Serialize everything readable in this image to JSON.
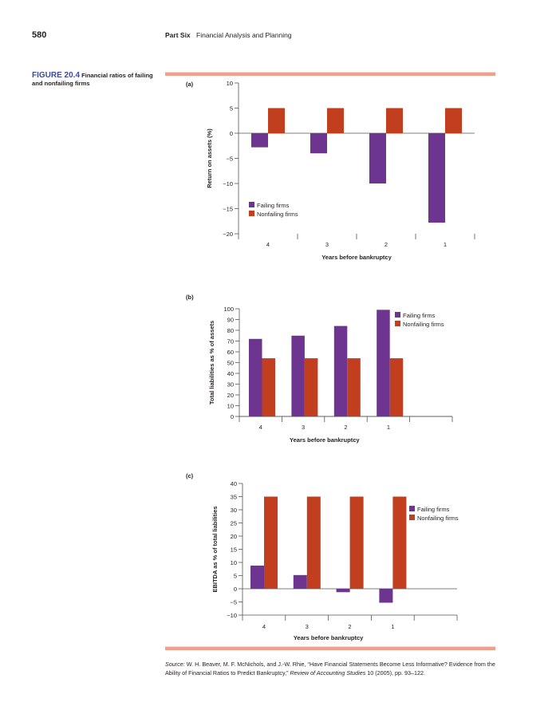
{
  "header": {
    "page_number": "580",
    "part": "Part Six",
    "section": "Financial Analysis and Planning"
  },
  "figure": {
    "number": "FIGURE 20.4",
    "title": "Financial ratios of failing and nonfailing firms"
  },
  "colors": {
    "failing": "#6e3590",
    "nonfailing": "#c13e1f",
    "axis": "#555555",
    "rule": "#f0a08a"
  },
  "chart_data": [
    {
      "panel": "(a)",
      "type": "bar",
      "title": "",
      "xlabel": "Years before bankruptcy",
      "ylabel": "Return on assets (%)",
      "categories": [
        "4",
        "3",
        "2",
        "1"
      ],
      "ylim": [
        -20,
        10
      ],
      "yticks": [
        10,
        5,
        0,
        -5,
        -10,
        -15,
        -20
      ],
      "ytick_labels": [
        "10",
        "5",
        "0",
        "−5",
        "−10",
        "−15",
        "−20"
      ],
      "series": [
        {
          "name": "Failing firms",
          "values": [
            -2.8,
            -4.0,
            -10.0,
            -17.8
          ]
        },
        {
          "name": "Nonfailing firms",
          "values": [
            5,
            5,
            5,
            5
          ]
        }
      ],
      "legend": {
        "position": "bottom-left",
        "entries": [
          "Failing firms",
          "Nonfailing firms"
        ]
      },
      "grid": false
    },
    {
      "panel": "(b)",
      "type": "bar",
      "title": "",
      "xlabel": "Years before bankruptcy",
      "ylabel": "Total liabilities as % of assets",
      "categories": [
        "4",
        "3",
        "2",
        "1"
      ],
      "ylim": [
        0,
        100
      ],
      "yticks": [
        100,
        90,
        80,
        70,
        60,
        50,
        40,
        30,
        20,
        10,
        0
      ],
      "ytick_labels": [
        "100",
        "90",
        "80",
        "70",
        "60",
        "50",
        "40",
        "30",
        "20",
        "10",
        "0"
      ],
      "series": [
        {
          "name": "Failing firms",
          "values": [
            72,
            75,
            84,
            99
          ]
        },
        {
          "name": "Nonfailing firms",
          "values": [
            54,
            54,
            54,
            54
          ]
        }
      ],
      "legend": {
        "position": "top-right",
        "entries": [
          "Failing firms",
          "Nonfailing firms"
        ]
      },
      "grid": false
    },
    {
      "panel": "(c)",
      "type": "bar",
      "title": "",
      "xlabel": "Years before bankruptcy",
      "ylabel": "EBITDA as % of total liabilities",
      "categories": [
        "4",
        "3",
        "2",
        "1"
      ],
      "ylim": [
        -10,
        40
      ],
      "yticks": [
        40,
        35,
        30,
        25,
        20,
        15,
        10,
        5,
        0,
        -5,
        -10
      ],
      "ytick_labels": [
        "40",
        "35",
        "30",
        "25",
        "20",
        "15",
        "10",
        "5",
        "0",
        "−5",
        "−10"
      ],
      "series": [
        {
          "name": "Failing firms",
          "values": [
            8.8,
            5.2,
            -1.3,
            -5.3
          ]
        },
        {
          "name": "Nonfailing firms",
          "values": [
            35,
            35,
            35,
            35
          ]
        }
      ],
      "legend": {
        "position": "right",
        "entries": [
          "Failing firms",
          "Nonfailing firms"
        ]
      },
      "grid": false
    }
  ],
  "source": {
    "label": "Source:",
    "text1": " W. H. Beaver, M. F. McNichols, and J.-W. Rhie, “Have Financial Statements Become Less Informative? Evidence from the Ability of Financial Ratios to Predict Bankruptcy,” ",
    "journal": "Review of Accounting Studies",
    "text2": " 10 (2005), pp. 93–122."
  }
}
